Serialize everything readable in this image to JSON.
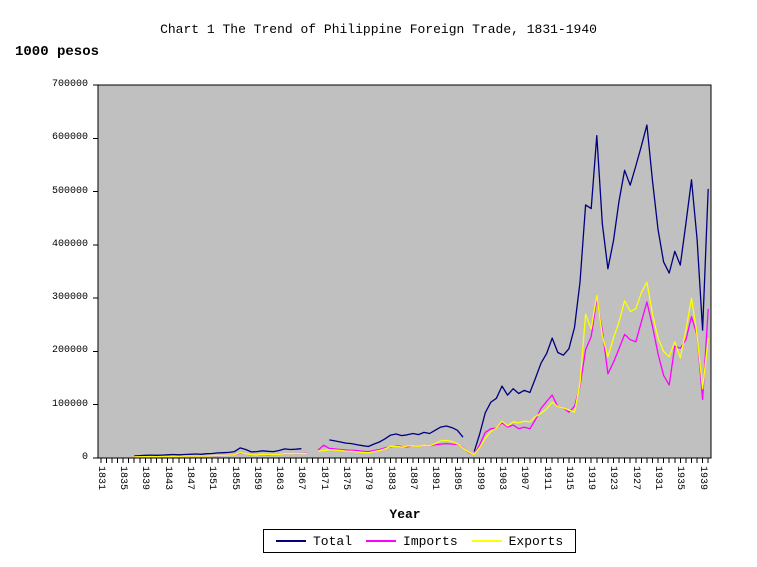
{
  "page": {
    "title": "Chart 1 The Trend of Philippine Foreign Trade, 1831-1940",
    "unit_label": "1000 pesos",
    "x_axis_title": "Year"
  },
  "colors": {
    "plot_background": "#C0C0C0",
    "plot_border": "#000000",
    "total_line": "#000080",
    "imports_line": "#FF00FF",
    "exports_line": "#FFFF00",
    "page_background": "#FFFFFF"
  },
  "chart_data": {
    "type": "line",
    "title": "Chart 1 The Trend of Philippine Foreign Trade, 1831-1940",
    "xlabel": "Year",
    "ylabel": "1000 pesos",
    "ylim": [
      0,
      700000
    ],
    "y_ticks": [
      0,
      100000,
      200000,
      300000,
      400000,
      500000,
      600000,
      700000
    ],
    "x_range": [
      1831,
      1940
    ],
    "x_minor_tick_every": 1,
    "x_tick_labels": [
      "1831",
      "1835",
      "1839",
      "1843",
      "1847",
      "1851",
      "1855",
      "1859",
      "1863",
      "1867",
      "1871",
      "1875",
      "1879",
      "1883",
      "1887",
      "1891",
      "1895",
      "1899",
      "1903",
      "1907",
      "1911",
      "1915",
      "1919",
      "1923",
      "1927",
      "1931",
      "1935",
      "1939"
    ],
    "grid": false,
    "plot_bg": "#C0C0C0",
    "legend_position": "bottom",
    "years_start": 1831,
    "series": [
      {
        "name": "Total",
        "color": "#000080",
        "values": [
          null,
          null,
          null,
          null,
          null,
          null,
          4000,
          4500,
          5000,
          5500,
          5000,
          5500,
          6000,
          6500,
          6000,
          6500,
          7000,
          7500,
          7000,
          8000,
          8500,
          9500,
          10000,
          10500,
          12000,
          19000,
          16000,
          11500,
          12000,
          13500,
          12500,
          12000,
          14000,
          17000,
          16000,
          16500,
          17500,
          null,
          null,
          null,
          null,
          34000,
          32000,
          30000,
          28000,
          27000,
          25000,
          23000,
          21500,
          26000,
          30000,
          36000,
          43000,
          45000,
          42000,
          43500,
          46000,
          44000,
          48000,
          46000,
          52000,
          58000,
          60000,
          57000,
          52000,
          39000,
          null,
          12000,
          45000,
          85000,
          105000,
          112000,
          135000,
          118000,
          130000,
          121000,
          127000,
          123000,
          150000,
          178000,
          196000,
          225000,
          198000,
          193000,
          205000,
          245000,
          330000,
          475000,
          468000,
          605000,
          440000,
          355000,
          408000,
          482000,
          540000,
          512000,
          548000,
          585000,
          625000,
          520000,
          428000,
          368000,
          347000,
          388000,
          362000,
          440000,
          522000,
          410000,
          240000,
          505000
        ]
      },
      {
        "name": "Imports",
        "color": "#FF00FF",
        "values": [
          null,
          null,
          null,
          null,
          null,
          null,
          2000,
          2300,
          2500,
          2800,
          2500,
          2800,
          3000,
          3300,
          3000,
          3200,
          3500,
          3700,
          3500,
          4000,
          4200,
          4700,
          5000,
          5200,
          6000,
          9000,
          8000,
          5500,
          6000,
          6500,
          6000,
          5800,
          7000,
          8500,
          8000,
          8200,
          8800,
          9000,
          null,
          15000,
          24000,
          18000,
          17000,
          16000,
          15000,
          14500,
          14000,
          12500,
          12000,
          14000,
          16000,
          19000,
          21000,
          23000,
          21500,
          21000,
          23000,
          22000,
          24000,
          23000,
          25000,
          26000,
          27000,
          26000,
          25500,
          20000,
          10000,
          6000,
          25000,
          48000,
          55000,
          56000,
          66000,
          58000,
          62000,
          55000,
          58000,
          55000,
          72000,
          93000,
          106000,
          118000,
          96000,
          94000,
          86000,
          97000,
          135000,
          203000,
          228000,
          298000,
          240000,
          158000,
          180000,
          205000,
          232000,
          222000,
          218000,
          255000,
          293000,
          247000,
          195000,
          155000,
          137000,
          210000,
          206000,
          222000,
          265000,
          230000,
          110000,
          280000
        ]
      },
      {
        "name": "Exports",
        "color": "#FFFF00",
        "values": [
          null,
          null,
          null,
          null,
          null,
          null,
          2000,
          2200,
          2500,
          2700,
          2500,
          2700,
          3000,
          3200,
          3000,
          3300,
          3500,
          3800,
          3500,
          4000,
          4300,
          4800,
          5000,
          5300,
          6000,
          10000,
          8000,
          6000,
          6000,
          7000,
          6500,
          6200,
          7000,
          8500,
          8000,
          8300,
          8700,
          8500,
          null,
          13000,
          14000,
          15500,
          15000,
          14000,
          13000,
          12500,
          11500,
          10500,
          9500,
          12000,
          14000,
          17000,
          22000,
          22000,
          20500,
          22500,
          23000,
          22000,
          24000,
          23000,
          27000,
          32000,
          33000,
          31000,
          26500,
          19000,
          11000,
          6000,
          20000,
          37000,
          50000,
          56000,
          69000,
          60000,
          68000,
          66000,
          69000,
          68000,
          78000,
          84000,
          92000,
          105000,
          96000,
          94000,
          90000,
          86000,
          140000,
          270000,
          242000,
          305000,
          230000,
          190000,
          225000,
          255000,
          295000,
          275000,
          280000,
          310000,
          330000,
          270000,
          225000,
          200000,
          190000,
          218000,
          188000,
          240000,
          300000,
          230000,
          130000,
          225000
        ]
      }
    ]
  }
}
